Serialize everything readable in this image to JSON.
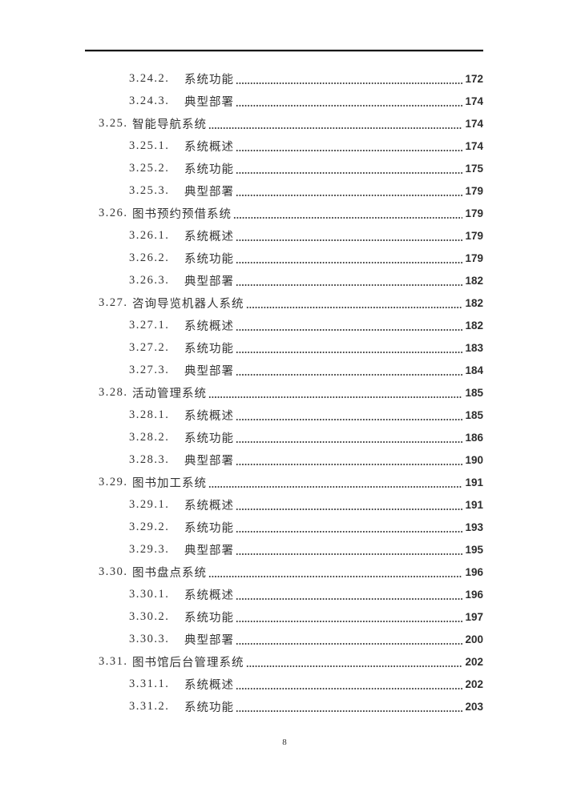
{
  "footer": {
    "page_number": "8"
  },
  "toc": {
    "entries": [
      {
        "level": 3,
        "number": "3.24.2.",
        "title": "系统功能",
        "page": "172"
      },
      {
        "level": 3,
        "number": "3.24.3.",
        "title": "典型部署",
        "page": "174"
      },
      {
        "level": 2,
        "number": "3.25.",
        "title": "智能导航系统",
        "page": "174"
      },
      {
        "level": 3,
        "number": "3.25.1.",
        "title": "系统概述",
        "page": "174"
      },
      {
        "level": 3,
        "number": "3.25.2.",
        "title": "系统功能",
        "page": "175"
      },
      {
        "level": 3,
        "number": "3.25.3.",
        "title": "典型部署",
        "page": "179"
      },
      {
        "level": 2,
        "number": "3.26.",
        "title": "图书预约预借系统",
        "page": "179"
      },
      {
        "level": 3,
        "number": "3.26.1.",
        "title": "系统概述",
        "page": "179"
      },
      {
        "level": 3,
        "number": "3.26.2.",
        "title": "系统功能",
        "page": "179"
      },
      {
        "level": 3,
        "number": "3.26.3.",
        "title": "典型部署",
        "page": "182"
      },
      {
        "level": 2,
        "number": "3.27.",
        "title": "咨询导览机器人系统",
        "page": "182"
      },
      {
        "level": 3,
        "number": "3.27.1.",
        "title": "系统概述",
        "page": "182"
      },
      {
        "level": 3,
        "number": "3.27.2.",
        "title": "系统功能",
        "page": "183"
      },
      {
        "level": 3,
        "number": "3.27.3.",
        "title": "典型部署",
        "page": "184"
      },
      {
        "level": 2,
        "number": "3.28.",
        "title": "活动管理系统",
        "page": "185"
      },
      {
        "level": 3,
        "number": "3.28.1.",
        "title": "系统概述",
        "page": "185"
      },
      {
        "level": 3,
        "number": "3.28.2.",
        "title": "系统功能",
        "page": "186"
      },
      {
        "level": 3,
        "number": "3.28.3.",
        "title": "典型部署",
        "page": "190"
      },
      {
        "level": 2,
        "number": "3.29.",
        "title": "图书加工系统",
        "page": "191"
      },
      {
        "level": 3,
        "number": "3.29.1.",
        "title": "系统概述",
        "page": "191"
      },
      {
        "level": 3,
        "number": "3.29.2.",
        "title": "系统功能",
        "page": "193"
      },
      {
        "level": 3,
        "number": "3.29.3.",
        "title": "典型部署",
        "page": "195"
      },
      {
        "level": 2,
        "number": "3.30.",
        "title": "图书盘点系统",
        "page": "196"
      },
      {
        "level": 3,
        "number": "3.30.1.",
        "title": "系统概述",
        "page": "196"
      },
      {
        "level": 3,
        "number": "3.30.2.",
        "title": "系统功能",
        "page": "197"
      },
      {
        "level": 3,
        "number": "3.30.3.",
        "title": "典型部署",
        "page": "200"
      },
      {
        "level": 2,
        "number": "3.31.",
        "title": "图书馆后台管理系统",
        "page": "202"
      },
      {
        "level": 3,
        "number": "3.31.1.",
        "title": "系统概述",
        "page": "202"
      },
      {
        "level": 3,
        "number": "3.31.2.",
        "title": "系统功能",
        "page": "203"
      }
    ]
  }
}
